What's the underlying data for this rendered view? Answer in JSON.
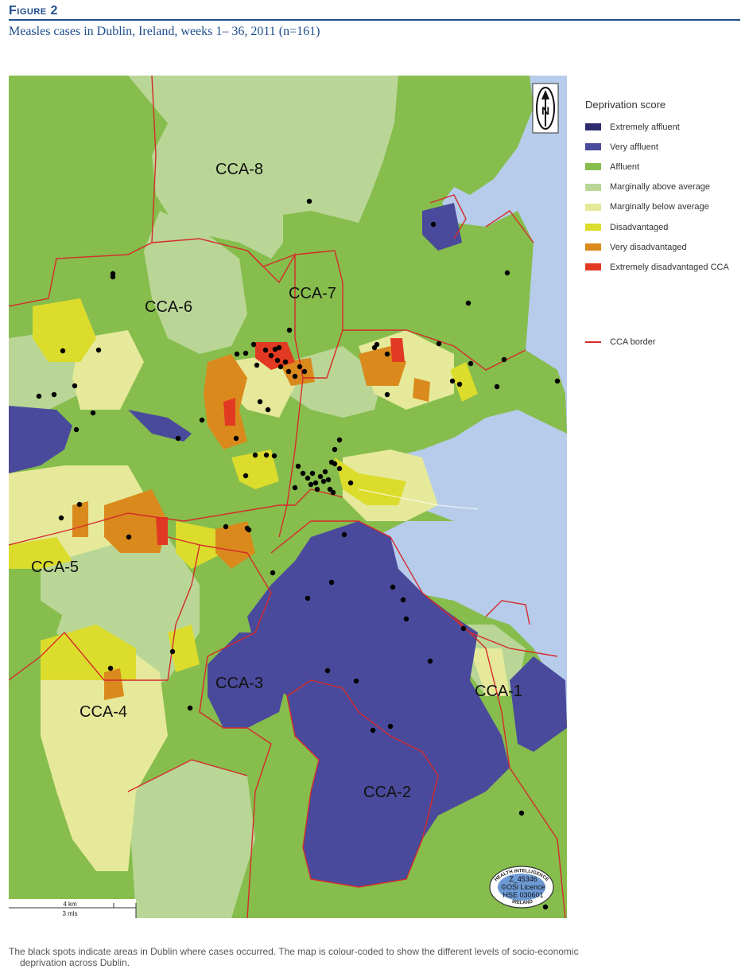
{
  "figure": {
    "label": "Figure 2",
    "title": "Measles cases in Dublin, Ireland, weeks 1– 36, 2011 (n=161)"
  },
  "legend": {
    "title": "Deprivation score",
    "items": [
      {
        "label": "Extremely affluent",
        "color": "#2f2a6e"
      },
      {
        "label": "Very affluent",
        "color": "#4a4a9c"
      },
      {
        "label": "Affluent",
        "color": "#86bd4c"
      },
      {
        "label": "Marginally above average",
        "color": "#b9d696"
      },
      {
        "label": "Marginally below average",
        "color": "#e6e99a"
      },
      {
        "label": "Disadvantaged",
        "color": "#dcdc2c"
      },
      {
        "label": "Very disadvantaged",
        "color": "#da8a1c"
      },
      {
        "label": "Extremely disadvantaged CCA",
        "color": "#e23a22"
      }
    ],
    "border": {
      "label": "CCA border",
      "color": "#d52b2b"
    }
  },
  "map": {
    "sea_color": "#b6ccea",
    "regions": [
      {
        "name": "CCA-1"
      },
      {
        "name": "CCA-2"
      },
      {
        "name": "CCA-3"
      },
      {
        "name": "CCA-4"
      },
      {
        "name": "CCA-5"
      },
      {
        "name": "CCA-6"
      },
      {
        "name": "CCA-7"
      },
      {
        "name": "CCA-8"
      }
    ],
    "north_arrow": "N",
    "scale": {
      "km": "4 km",
      "miles": "3 mls"
    },
    "seal": {
      "top_text": "HEALTH INTELLIGENCE",
      "line1": "Z_45346",
      "line2": "©OSi Licence",
      "line3": "HSE 030601",
      "bottom_text": "IRELAND"
    }
  },
  "caption": {
    "line1": "The black spots indicate areas in Dublin where cases occurred. The map is colour-coded to show the different levels of socio-economic",
    "line2": "deprivation across Dublin."
  }
}
